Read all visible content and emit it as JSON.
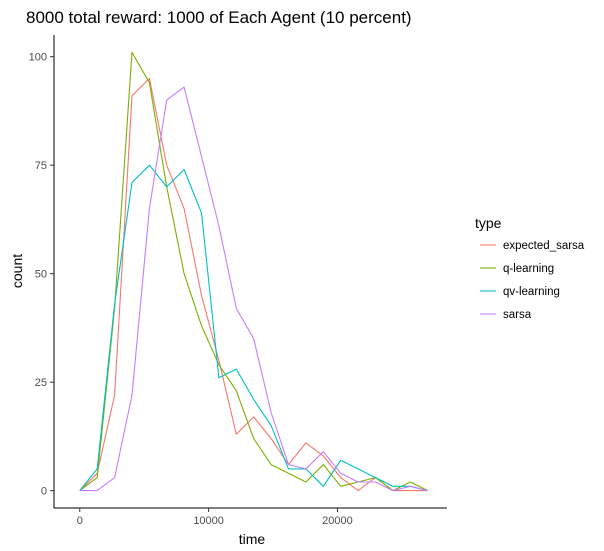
{
  "chart_data": {
    "type": "line",
    "title": "8000 total reward: 1000 of Each Agent (10 percent)",
    "xlabel": "time",
    "ylabel": "count",
    "xlim": [
      -2000,
      28500
    ],
    "ylim": [
      -4,
      105
    ],
    "xticks": [
      0,
      10000,
      20000
    ],
    "xtick_labels": [
      "0",
      "10000",
      "20000"
    ],
    "yticks": [
      0,
      25,
      50,
      75,
      100
    ],
    "ytick_labels": [
      "0",
      "25",
      "50",
      "75",
      "100"
    ],
    "grid": false,
    "legend": {
      "title": "type",
      "position": "right"
    },
    "series": [
      {
        "name": "expected_sarsa",
        "color": "#F8766D",
        "x": [
          0,
          1350,
          2700,
          4050,
          5400,
          6750,
          8100,
          9450,
          10800,
          12150,
          13500,
          14850,
          16200,
          17550,
          18900,
          20250,
          21600,
          22950,
          24300,
          25650,
          27000
        ],
        "y": [
          0,
          4,
          22,
          91,
          95,
          75,
          65,
          45,
          30,
          13,
          17,
          12,
          6,
          11,
          8,
          3,
          0,
          3,
          0,
          0,
          0
        ]
      },
      {
        "name": "q-learning",
        "color": "#7CAE00",
        "x": [
          0,
          1350,
          2700,
          4050,
          5400,
          6750,
          8100,
          9450,
          10800,
          12150,
          13500,
          14850,
          16200,
          17550,
          18900,
          20250,
          21600,
          22950,
          24300,
          25650,
          27000
        ],
        "y": [
          0,
          3,
          42,
          101,
          94,
          70,
          50,
          38,
          29,
          23,
          12,
          6,
          4,
          2,
          6,
          1,
          2,
          3,
          0,
          2,
          0
        ]
      },
      {
        "name": "qv-learning",
        "color": "#00BFC4",
        "x": [
          0,
          1350,
          2700,
          4050,
          5400,
          6750,
          8100,
          9450,
          10800,
          12150,
          13500,
          14850,
          16200,
          17550,
          18900,
          20250,
          21600,
          22950,
          24300,
          25650,
          27000
        ],
        "y": [
          0,
          5,
          43,
          71,
          75,
          70,
          74,
          64,
          26,
          28,
          21,
          15,
          5,
          5,
          1,
          7,
          5,
          3,
          1,
          1,
          0
        ]
      },
      {
        "name": "sarsa",
        "color": "#C77CFF",
        "x": [
          0,
          1350,
          2700,
          4050,
          5400,
          6750,
          8100,
          9450,
          10800,
          12150,
          13500,
          14850,
          16200,
          17550,
          18900,
          20250,
          21600,
          22950,
          24300,
          25650,
          27000
        ],
        "y": [
          0,
          0,
          3,
          22,
          65,
          90,
          93,
          77,
          61,
          42,
          35,
          18,
          6,
          5,
          9,
          4,
          2,
          2,
          0,
          1,
          0
        ]
      }
    ]
  }
}
